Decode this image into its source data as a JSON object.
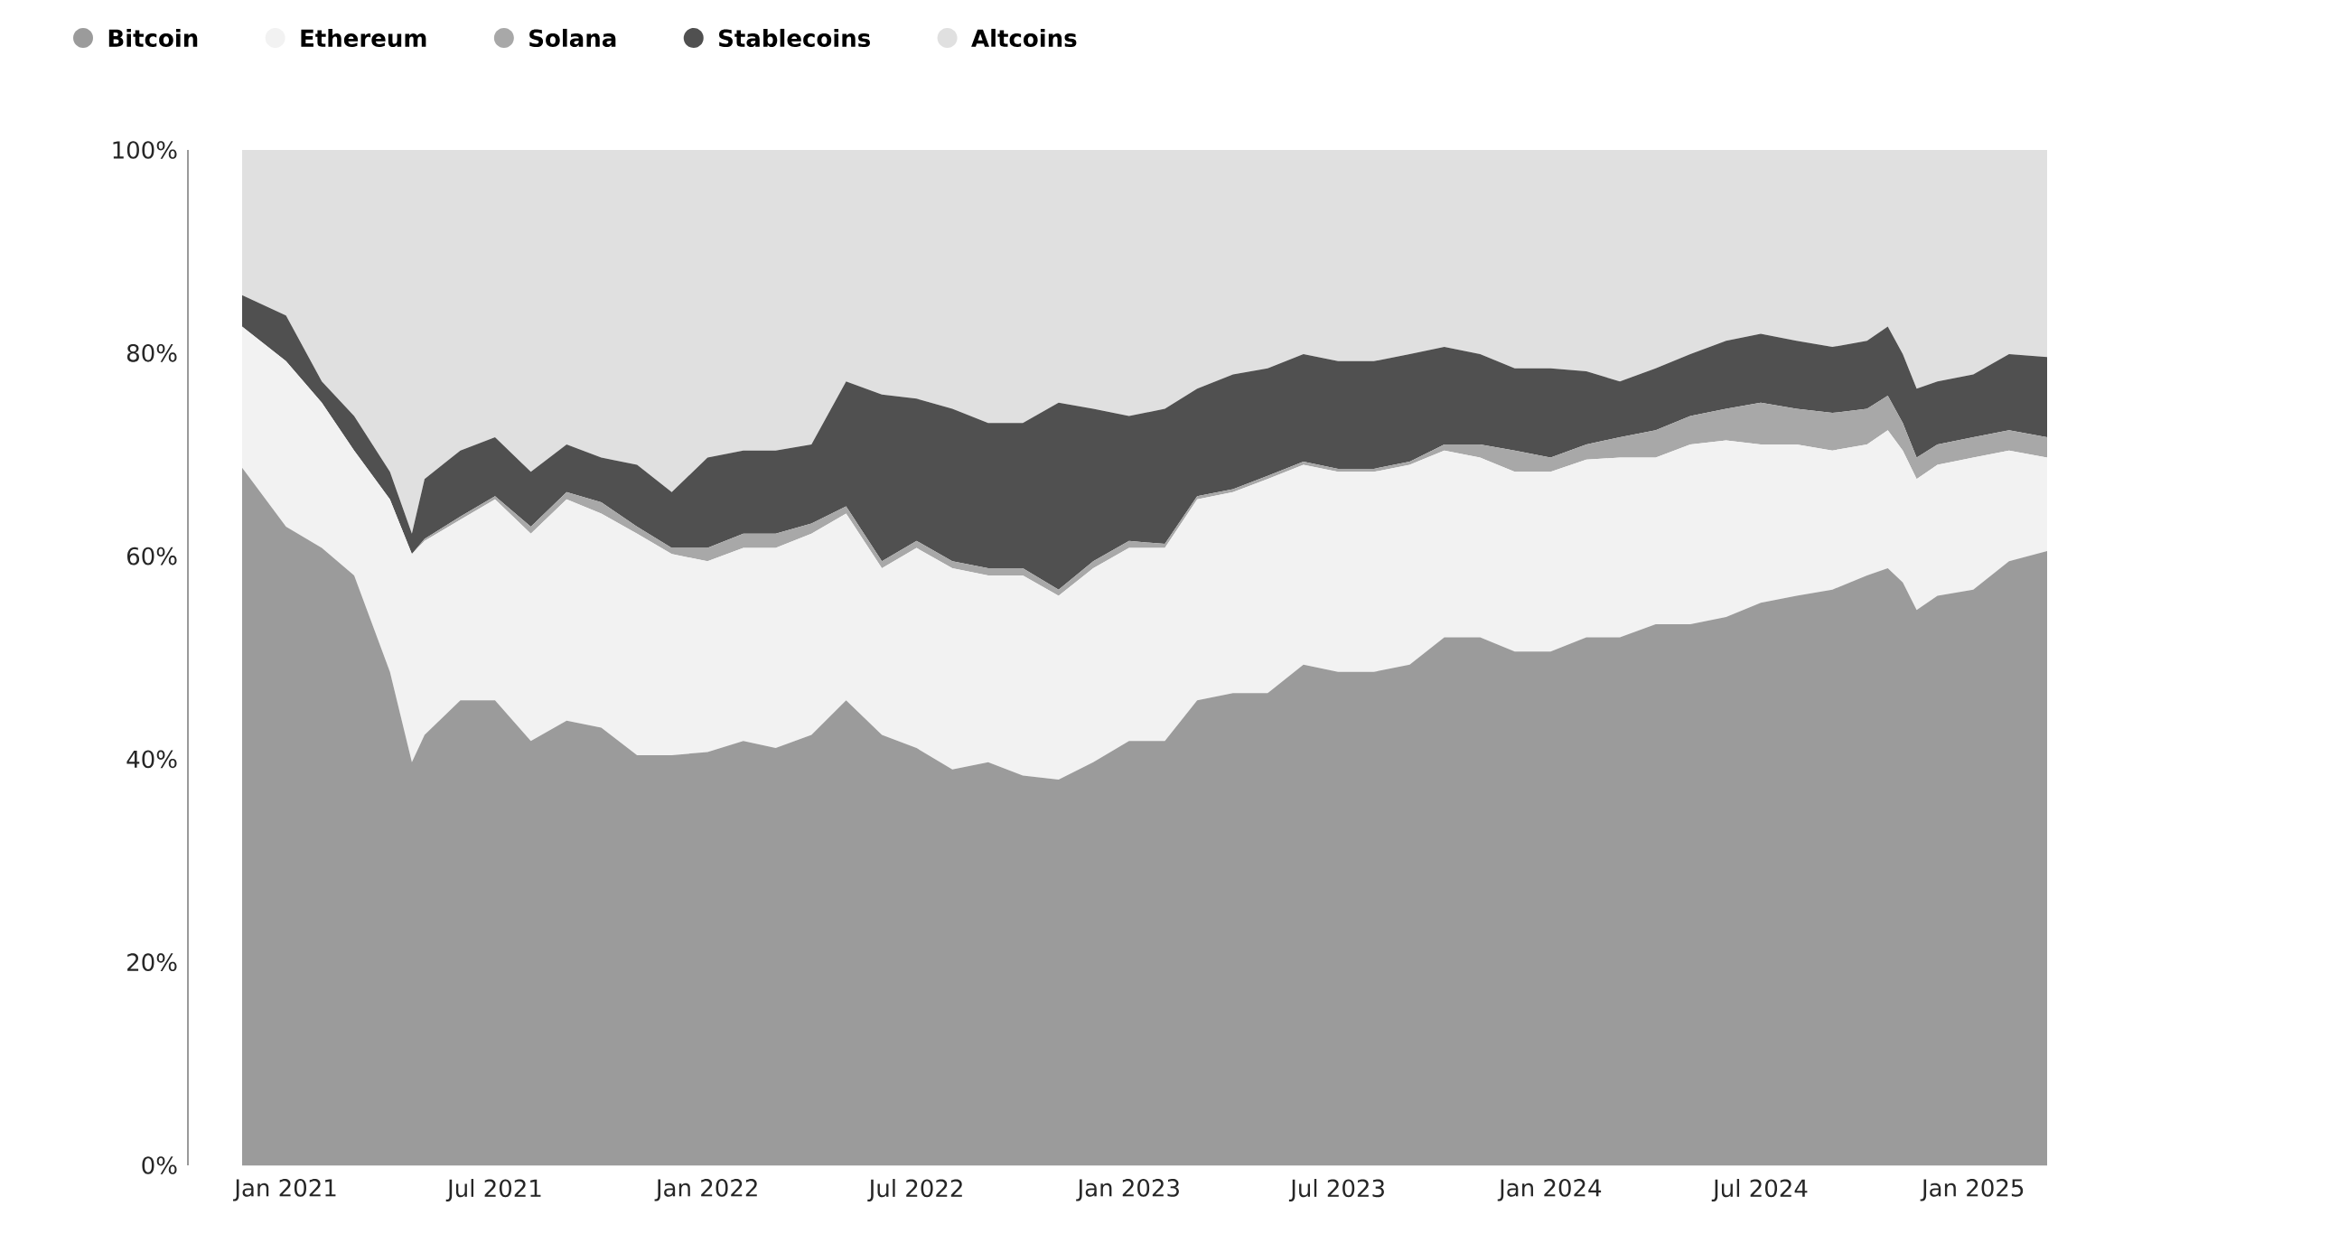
{
  "chart_data": {
    "type": "area",
    "stacked": true,
    "legend": "top left",
    "grid": false,
    "x": [
      "2020-11-24",
      "2021-01-01",
      "2021-02-01",
      "2021-03-01",
      "2021-04-01",
      "2021-04-20",
      "2021-05-01",
      "2021-06-01",
      "2021-07-01",
      "2021-08-01",
      "2021-09-01",
      "2021-10-01",
      "2021-11-01",
      "2021-12-01",
      "2022-01-01",
      "2022-02-01",
      "2022-03-01",
      "2022-04-01",
      "2022-05-01",
      "2022-06-01",
      "2022-07-01",
      "2022-08-01",
      "2022-09-01",
      "2022-10-01",
      "2022-11-01",
      "2022-12-01",
      "2023-01-01",
      "2023-02-01",
      "2023-03-01",
      "2023-04-01",
      "2023-05-01",
      "2023-06-01",
      "2023-07-01",
      "2023-08-01",
      "2023-09-01",
      "2023-10-01",
      "2023-11-01",
      "2023-12-01",
      "2024-01-01",
      "2024-02-01",
      "2024-03-01",
      "2024-04-01",
      "2024-05-01",
      "2024-06-01",
      "2024-07-01",
      "2024-08-01",
      "2024-09-01",
      "2024-10-01",
      "2024-10-19",
      "2024-11-01",
      "2024-11-13",
      "2024-12-01",
      "2025-01-01",
      "2025-02-01",
      "2025-03-06"
    ],
    "series": [
      {
        "name": "Bitcoin",
        "color": "#9b9b9b",
        "values": [
          68.7,
          62.9,
          60.8,
          58.1,
          48.6,
          39.7,
          42.4,
          45.8,
          45.8,
          41.8,
          43.8,
          43.1,
          40.4,
          40.4,
          40.7,
          41.8,
          41.1,
          42.4,
          45.8,
          42.4,
          41.1,
          39.0,
          39.7,
          38.4,
          38.0,
          39.7,
          41.8,
          41.8,
          45.8,
          46.5,
          46.5,
          49.3,
          48.6,
          48.6,
          49.3,
          52.0,
          52.0,
          50.6,
          50.6,
          52.0,
          52.0,
          53.3,
          53.3,
          54.0,
          55.4,
          56.1,
          56.7,
          58.1,
          58.8,
          57.4,
          54.7,
          56.1,
          56.7,
          59.5,
          60.5
        ]
      },
      {
        "name": "Ethereum",
        "color": "#f2f2f2",
        "values": [
          13.9,
          16.3,
          14.3,
          12.3,
          17.0,
          20.5,
          19.1,
          17.8,
          19.8,
          20.4,
          21.8,
          21.1,
          21.8,
          19.8,
          18.8,
          19.0,
          19.7,
          19.8,
          18.4,
          16.4,
          19.7,
          19.8,
          18.4,
          19.7,
          18.1,
          19.1,
          19.0,
          19.0,
          19.8,
          19.8,
          21.1,
          19.7,
          19.7,
          19.7,
          19.7,
          18.4,
          17.7,
          17.7,
          17.7,
          17.5,
          17.7,
          16.4,
          17.7,
          17.4,
          15.6,
          14.9,
          13.7,
          12.9,
          13.6,
          13.0,
          12.9,
          12.9,
          13.0,
          10.9,
          9.2
        ]
      },
      {
        "name": "Solana",
        "color": "#a8a8a8",
        "values": [
          0,
          0,
          0,
          0,
          0,
          0,
          0.2,
          0.3,
          0.3,
          0.7,
          0.7,
          1.1,
          0.7,
          0.6,
          1.3,
          1.4,
          1.4,
          1.0,
          0.7,
          0.7,
          0.7,
          0.7,
          0.7,
          0.7,
          0.6,
          0.7,
          0.7,
          0.4,
          0.3,
          0.3,
          0.3,
          0.3,
          0.3,
          0.3,
          0.3,
          0.6,
          1.3,
          2.1,
          1.4,
          1.5,
          2.0,
          2.7,
          2.8,
          3.1,
          4.1,
          3.5,
          3.7,
          3.5,
          3.4,
          2.7,
          2.1,
          2.0,
          2.0,
          2.0,
          2.0
        ]
      },
      {
        "name": "Stablecoins",
        "color": "#505050",
        "values": [
          3.1,
          4.5,
          2.1,
          3.4,
          2.7,
          2.0,
          5.9,
          6.5,
          5.8,
          5.4,
          4.7,
          4.4,
          6.1,
          5.5,
          8.9,
          8.2,
          8.2,
          7.8,
          12.3,
          16.4,
          14.0,
          15.0,
          14.3,
          14.3,
          18.4,
          15.0,
          12.3,
          13.3,
          10.6,
          11.3,
          10.6,
          10.6,
          10.6,
          10.6,
          10.6,
          9.6,
          8.9,
          8.1,
          8.8,
          7.2,
          5.5,
          6.1,
          6.1,
          6.7,
          6.8,
          6.7,
          6.5,
          6.7,
          6.8,
          6.8,
          6.8,
          6.2,
          6.2,
          7.5,
          7.9
        ]
      },
      {
        "name": "Altcoins",
        "color": "#e0e0e0",
        "values": [
          14.3,
          16.3,
          22.8,
          26.2,
          31.7,
          37.8,
          32.4,
          29.6,
          28.3,
          31.7,
          29.0,
          30.3,
          31.0,
          33.7,
          30.3,
          29.6,
          29.6,
          29.0,
          22.8,
          24.1,
          24.5,
          25.5,
          26.9,
          26.9,
          24.9,
          25.5,
          26.2,
          25.5,
          23.5,
          22.1,
          21.5,
          20.1,
          20.8,
          20.8,
          20.1,
          19.4,
          20.1,
          21.5,
          21.5,
          21.8,
          22.8,
          21.5,
          20.1,
          18.8,
          18.1,
          18.8,
          19.4,
          18.8,
          17.4,
          20.1,
          23.5,
          22.8,
          22.1,
          20.1,
          20.4
        ]
      }
    ],
    "xlim": [
      "2020-11-24",
      "2025-03-06"
    ],
    "xticks": [
      {
        "value": "2021-01-01",
        "label": "Jan 2021"
      },
      {
        "value": "2021-07-01",
        "label": "Jul 2021"
      },
      {
        "value": "2022-01-01",
        "label": "Jan 2022"
      },
      {
        "value": "2022-07-01",
        "label": "Jul 2022"
      },
      {
        "value": "2023-01-01",
        "label": "Jan 2023"
      },
      {
        "value": "2023-07-01",
        "label": "Jul 2023"
      },
      {
        "value": "2024-01-01",
        "label": "Jan 2024"
      },
      {
        "value": "2024-07-01",
        "label": "Jul 2024"
      },
      {
        "value": "2025-01-01",
        "label": "Jan 2025"
      }
    ],
    "ylim": [
      0,
      100
    ],
    "yticks": [
      {
        "value": 0,
        "label": "0%"
      },
      {
        "value": 20,
        "label": "20%"
      },
      {
        "value": 40,
        "label": "40%"
      },
      {
        "value": 60,
        "label": "60%"
      },
      {
        "value": 80,
        "label": "80%"
      },
      {
        "value": 100,
        "label": "100%"
      }
    ]
  }
}
